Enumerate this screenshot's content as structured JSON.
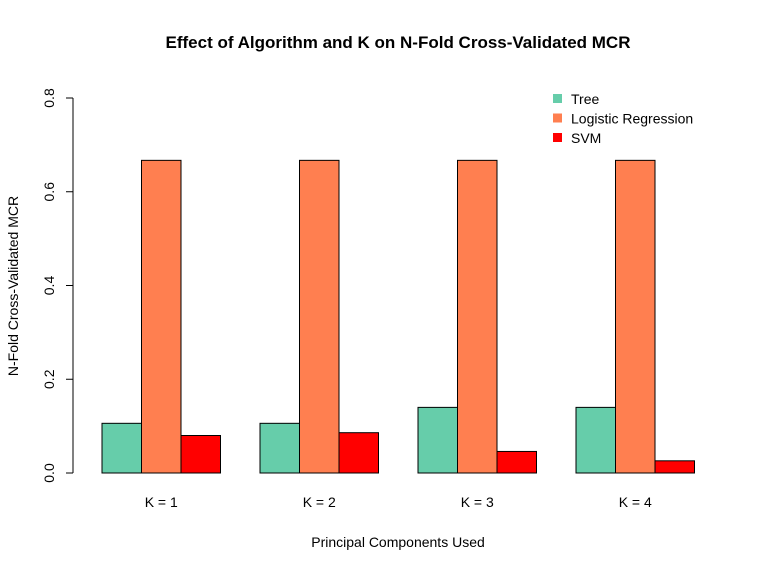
{
  "chart_data": {
    "type": "bar",
    "title": "Effect of Algorithm and K on N-Fold Cross-Validated MCR",
    "xlabel": "Principal Components Used",
    "ylabel": "N-Fold Cross-Validated MCR",
    "categories": [
      "K = 1",
      "K = 2",
      "K = 3",
      "K = 4"
    ],
    "series": [
      {
        "name": "Tree",
        "color": "#66CDAA",
        "values": [
          0.106,
          0.106,
          0.14,
          0.14
        ]
      },
      {
        "name": "Logistic Regression",
        "color": "#FF7F50",
        "values": [
          0.667,
          0.667,
          0.667,
          0.667
        ]
      },
      {
        "name": "SVM",
        "color": "#FF0000",
        "values": [
          0.08,
          0.086,
          0.046,
          0.026
        ]
      }
    ],
    "ylim": [
      0,
      0.8
    ],
    "yticks": [
      "0.0",
      "0.2",
      "0.4",
      "0.6",
      "0.8"
    ],
    "grid": false,
    "legend_position": "top-right"
  }
}
